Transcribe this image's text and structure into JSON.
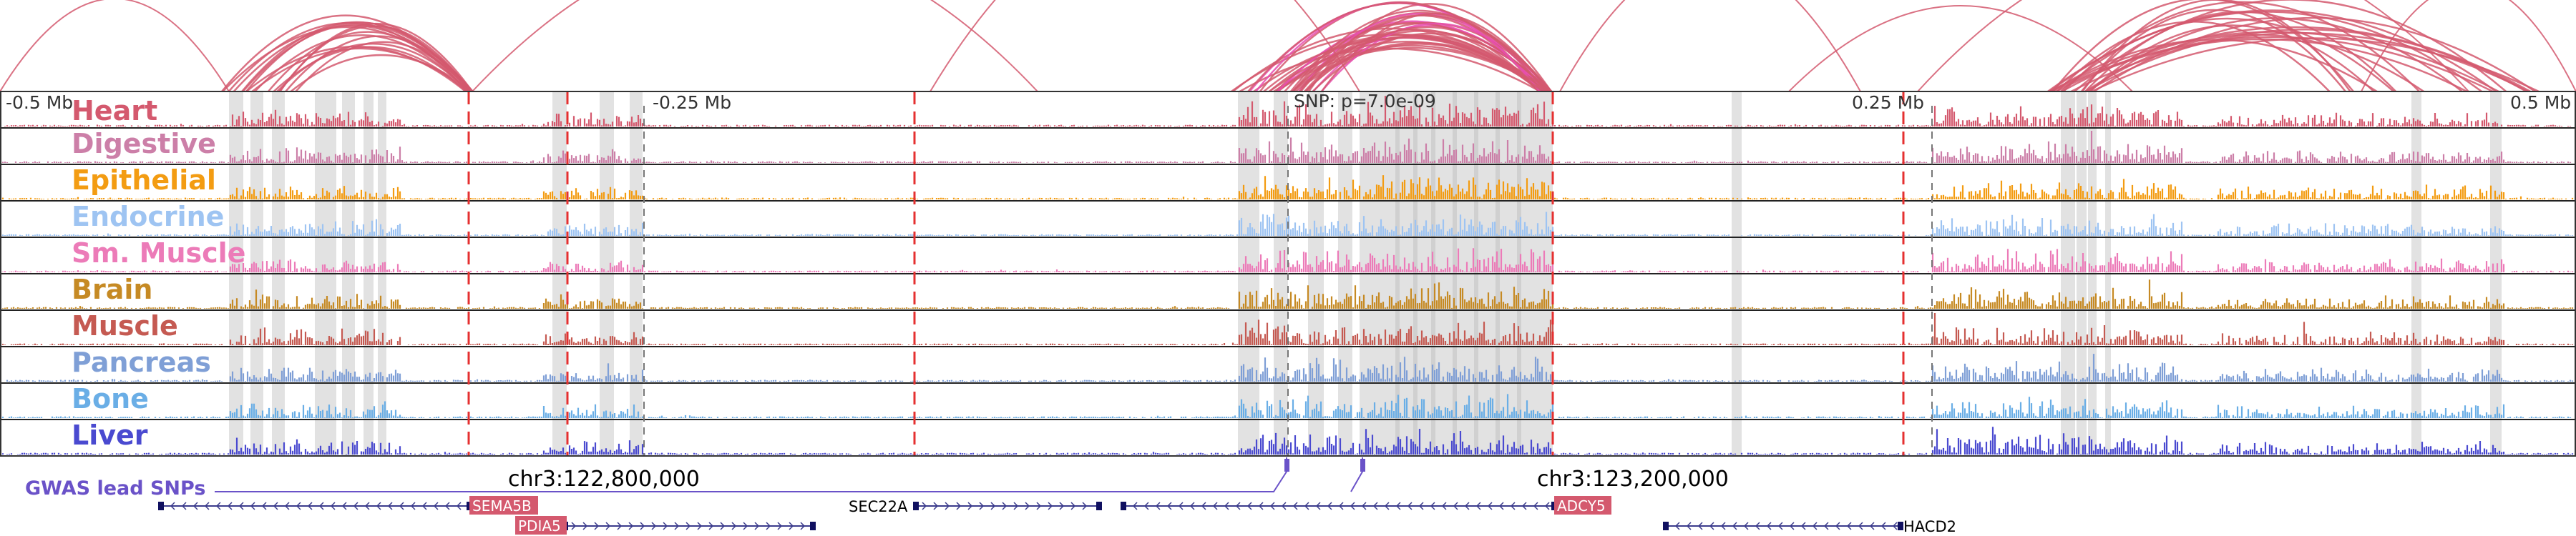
{
  "axis": {
    "ticks": [
      {
        "label": "-0.5 Mb",
        "pos": 0.0
      },
      {
        "label": "-0.25 Mb",
        "pos": 0.25
      },
      {
        "label": "SNP: p=7.0e-09",
        "pos": 0.5
      },
      {
        "label": "0.25 Mb",
        "pos": 0.75
      },
      {
        "label": "0.5 Mb",
        "pos": 1.0
      }
    ]
  },
  "tracks": [
    {
      "name": "Heart",
      "color": "#d4596e"
    },
    {
      "name": "Digestive",
      "color": "#cc7fa8"
    },
    {
      "name": "Epithelial",
      "color": "#f39c12"
    },
    {
      "name": "Endocrine",
      "color": "#9ec4f2"
    },
    {
      "name": "Sm. Muscle",
      "color": "#ec7bb8"
    },
    {
      "name": "Brain",
      "color": "#c68a24"
    },
    {
      "name": "Muscle",
      "color": "#c55a52"
    },
    {
      "name": "Pancreas",
      "color": "#7f9fd6"
    },
    {
      "name": "Bone",
      "color": "#6aaee6"
    },
    {
      "name": "Liver",
      "color": "#4a4ad0"
    }
  ],
  "gwas": {
    "label": "GWAS lead SNPs",
    "color": "#6a52c8"
  },
  "coordinates": [
    "chr3:122,800,000",
    "chr3:123,200,000"
  ],
  "genes": [
    {
      "name": "SEMA5B",
      "boxed": true,
      "color": "#d4596e"
    },
    {
      "name": "PDIA5",
      "boxed": true,
      "color": "#d4596e"
    },
    {
      "name": "SEC22A",
      "boxed": false
    },
    {
      "name": "ADCY5",
      "boxed": true,
      "color": "#d4596e"
    },
    {
      "name": "HACD2",
      "boxed": false
    }
  ],
  "colors": {
    "loop": "#d4596e",
    "loop_highlight": "#e74fb0",
    "boundary": "#e53030",
    "shade": "#e2e2e2",
    "gene_line": "#3b3b8c"
  }
}
